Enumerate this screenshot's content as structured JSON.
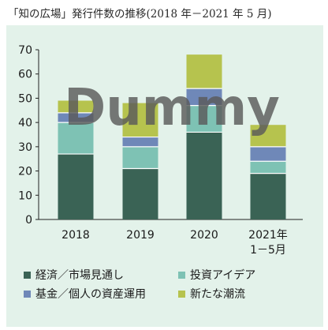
{
  "title": "「知の広場」発行件数の推移(2018 年－2021 年 5 月)",
  "watermark": "Dummy",
  "chart_data": {
    "type": "bar",
    "stacked": true,
    "categories": [
      "2018",
      "2019",
      "2020",
      "2021年\n1－5月"
    ],
    "series": [
      {
        "name": "経済／市場見通し",
        "color": "#3a6355",
        "values": [
          27,
          21,
          36,
          19
        ]
      },
      {
        "name": "投資アイデア",
        "color": "#7ec2b4",
        "values": [
          13,
          9,
          11,
          5
        ]
      },
      {
        "name": "基金／個人の資産運用",
        "color": "#6f88b8",
        "values": [
          4,
          4,
          7,
          6
        ]
      },
      {
        "name": "新たな潮流",
        "color": "#b6c34e",
        "values": [
          5,
          14,
          14,
          9
        ]
      }
    ],
    "yticks": [
      0,
      10,
      20,
      30,
      40,
      50,
      60,
      70
    ],
    "ylim": [
      0,
      70
    ],
    "grid": false,
    "legend_position": "bottom"
  }
}
